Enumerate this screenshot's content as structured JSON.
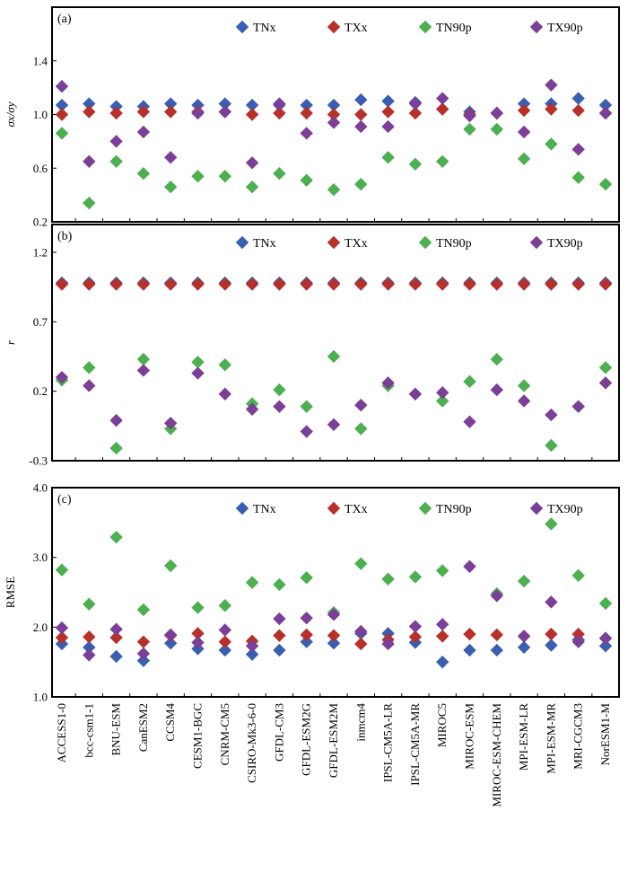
{
  "chart_data": {
    "type": "scatter",
    "models": [
      "ACCESS1-0",
      "bcc-csm1-1",
      "BNU-ESM",
      "CanESM2",
      "CCSM4",
      "CESM1-BGC",
      "CNRM-CM5",
      "CSIRO-Mk3-6-0",
      "GFDL-CM3",
      "GFDL-ESM2G",
      "GFDL-ESM2M",
      "inmcm4",
      "IPSL-CM5A-LR",
      "IPSL-CM5A-MR",
      "MIROC5",
      "MIROC-ESM",
      "MIROC-ESM-CHEM",
      "MPI-ESM-LR",
      "MPI-ESM-MR",
      "MRI-CGCM3",
      "NorESM1-M"
    ],
    "legend": [
      {
        "name": "TNx",
        "color": "#3a5fb0"
      },
      {
        "name": "TXx",
        "color": "#b8302a"
      },
      {
        "name": "TN90p",
        "color": "#4caf50"
      },
      {
        "name": "TX90p",
        "color": "#7b3f98"
      }
    ],
    "panels": [
      {
        "label": "(a)",
        "ylabel": "σx/σy",
        "ylim": [
          0.2,
          1.8
        ],
        "yticks": [
          "0.2",
          "0.6",
          "1.0",
          "1.4"
        ],
        "yticks_values": [
          0.2,
          0.6,
          1.0,
          1.4
        ],
        "series": [
          {
            "name": "TNx",
            "values": [
              1.07,
              1.08,
              1.06,
              1.06,
              1.08,
              1.07,
              1.08,
              1.07,
              1.07,
              1.07,
              1.07,
              1.11,
              1.1,
              1.09,
              1.04,
              1.02,
              1.01,
              1.08,
              1.08,
              1.12,
              1.07
            ]
          },
          {
            "name": "TXx",
            "values": [
              1.0,
              1.02,
              1.01,
              1.02,
              1.02,
              1.02,
              1.02,
              1.0,
              1.01,
              1.01,
              1.0,
              1.0,
              1.02,
              1.01,
              1.04,
              1.0,
              1.01,
              1.03,
              1.04,
              1.03,
              1.01
            ]
          },
          {
            "name": "TN90p",
            "values": [
              0.86,
              0.34,
              0.65,
              0.56,
              0.46,
              0.54,
              0.54,
              0.46,
              0.56,
              0.51,
              0.44,
              0.48,
              0.68,
              0.63,
              0.65,
              0.89,
              0.89,
              0.67,
              0.78,
              0.53,
              0.48
            ]
          },
          {
            "name": "TX90p",
            "values": [
              1.21,
              0.65,
              0.8,
              0.87,
              0.68,
              1.01,
              1.02,
              0.64,
              1.08,
              0.86,
              0.94,
              0.91,
              0.91,
              1.08,
              1.12,
              0.99,
              1.01,
              0.87,
              1.22,
              0.74,
              1.01
            ]
          }
        ]
      },
      {
        "label": "(b)",
        "ylabel": "r",
        "ylim": [
          -0.3,
          1.4
        ],
        "yticks": [
          "-0.3",
          "0.2",
          "0.7",
          "1.2"
        ],
        "yticks_values": [
          -0.3,
          0.2,
          0.7,
          1.2
        ],
        "series": [
          {
            "name": "TNx",
            "values": [
              0.98,
              0.98,
              0.98,
              0.98,
              0.98,
              0.98,
              0.98,
              0.98,
              0.98,
              0.98,
              0.98,
              0.98,
              0.98,
              0.98,
              0.98,
              0.98,
              0.98,
              0.98,
              0.98,
              0.98,
              0.98
            ]
          },
          {
            "name": "TXx",
            "values": [
              0.97,
              0.97,
              0.97,
              0.97,
              0.97,
              0.97,
              0.97,
              0.97,
              0.97,
              0.97,
              0.97,
              0.97,
              0.97,
              0.97,
              0.97,
              0.97,
              0.97,
              0.97,
              0.97,
              0.97,
              0.97
            ]
          },
          {
            "name": "TN90p",
            "values": [
              0.28,
              0.37,
              -0.21,
              0.43,
              -0.07,
              0.41,
              0.39,
              0.11,
              0.21,
              0.09,
              0.45,
              -0.07,
              0.24,
              0.18,
              0.13,
              0.27,
              0.43,
              0.24,
              -0.19,
              0.09,
              0.37
            ]
          },
          {
            "name": "TX90p",
            "values": [
              0.3,
              0.24,
              -0.01,
              0.35,
              -0.03,
              0.33,
              0.18,
              0.07,
              0.09,
              -0.09,
              -0.04,
              0.1,
              0.26,
              0.18,
              0.19,
              -0.02,
              0.21,
              0.13,
              0.03,
              0.09,
              0.26
            ]
          }
        ]
      },
      {
        "label": "(c)",
        "ylabel": "RMSE",
        "ylim": [
          1.0,
          4.0
        ],
        "yticks": [
          "1.0",
          "2.0",
          "3.0",
          "4.0"
        ],
        "yticks_values": [
          1.0,
          2.0,
          3.0,
          4.0
        ],
        "series": [
          {
            "name": "TNx",
            "values": [
              1.76,
              1.71,
              1.58,
              1.52,
              1.77,
              1.69,
              1.67,
              1.61,
              1.67,
              1.79,
              1.77,
              1.91,
              1.91,
              1.78,
              1.5,
              1.67,
              1.67,
              1.71,
              1.74,
              1.82,
              1.73
            ]
          },
          {
            "name": "TXx",
            "values": [
              1.85,
              1.86,
              1.85,
              1.79,
              1.88,
              1.91,
              1.79,
              1.8,
              1.88,
              1.89,
              1.88,
              1.76,
              1.82,
              1.86,
              1.87,
              1.9,
              1.89,
              1.87,
              1.9,
              1.9,
              1.84
            ]
          },
          {
            "name": "TN90p",
            "values": [
              2.82,
              2.33,
              3.29,
              2.25,
              2.88,
              2.28,
              2.31,
              2.64,
              2.61,
              2.71,
              2.21,
              2.91,
              2.69,
              2.72,
              2.81,
              2.87,
              2.48,
              2.66,
              3.48,
              2.74,
              2.34
            ]
          },
          {
            "name": "TX90p",
            "values": [
              1.99,
              1.6,
              1.97,
              1.62,
              1.89,
              1.78,
              1.96,
              1.73,
              2.12,
              2.13,
              2.18,
              1.94,
              1.76,
              2.01,
              2.04,
              2.87,
              2.45,
              1.87,
              2.36,
              1.79,
              1.84
            ]
          }
        ]
      }
    ]
  }
}
